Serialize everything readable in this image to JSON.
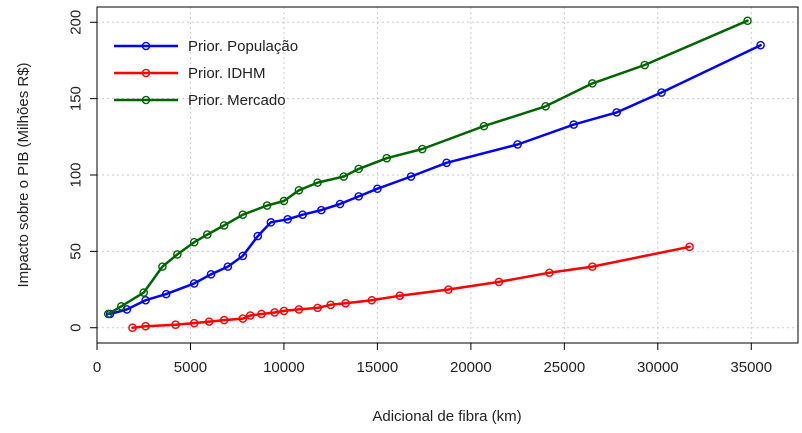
{
  "chart_data": {
    "type": "line",
    "title": "",
    "xlabel": "Adicional de fibra (km)",
    "ylabel": "Impacto sobre o PIB (Milhões R$)",
    "xlim": [
      0,
      37500
    ],
    "ylim": [
      -10,
      210
    ],
    "xticks": [
      0,
      5000,
      10000,
      15000,
      20000,
      25000,
      30000,
      35000
    ],
    "xtick_labels": [
      "0",
      "5000",
      "10000",
      "15000",
      "20000",
      "25000",
      "30000",
      "35000"
    ],
    "yticks": [
      0,
      50,
      100,
      150,
      200
    ],
    "ytick_labels": [
      "0",
      "50",
      "100",
      "150",
      "200"
    ],
    "grid": true,
    "legend_position": "top-left",
    "series": [
      {
        "name": "Prior. População",
        "color": "#0000ff",
        "x": [
          700,
          1600,
          2600,
          3700,
          5200,
          6100,
          7000,
          7800,
          8600,
          9300,
          10200,
          11000,
          12000,
          13000,
          14000,
          15000,
          16800,
          18700,
          22500,
          25500,
          27800,
          30200,
          35500
        ],
        "y": [
          9,
          12,
          18,
          22,
          29,
          35,
          40,
          47,
          60,
          69,
          71,
          74,
          77,
          81,
          86,
          91,
          99,
          108,
          120,
          133,
          141,
          154,
          185
        ]
      },
      {
        "name": "Prior. IDHM",
        "color": "#ff0000",
        "x": [
          1900,
          2600,
          4200,
          5200,
          6000,
          6800,
          7800,
          8200,
          8800,
          9500,
          10000,
          10800,
          11800,
          12500,
          13300,
          14700,
          16200,
          18800,
          21500,
          24200,
          26500,
          31700
        ],
        "y": [
          0,
          1,
          2,
          3,
          4,
          5,
          6,
          8,
          9,
          10,
          11,
          12,
          13,
          15,
          16,
          18,
          21,
          25,
          30,
          36,
          40,
          53
        ]
      },
      {
        "name": "Prior. Mercado",
        "color": "#006400",
        "x": [
          600,
          1300,
          2500,
          3500,
          4300,
          5200,
          5900,
          6800,
          7800,
          9100,
          10000,
          10800,
          11800,
          13200,
          14000,
          15500,
          17400,
          20700,
          24000,
          26500,
          29300,
          34800
        ],
        "y": [
          9,
          14,
          23,
          40,
          48,
          56,
          61,
          67,
          74,
          80,
          83,
          90,
          95,
          99,
          104,
          111,
          117,
          132,
          145,
          160,
          172,
          201
        ]
      }
    ]
  }
}
